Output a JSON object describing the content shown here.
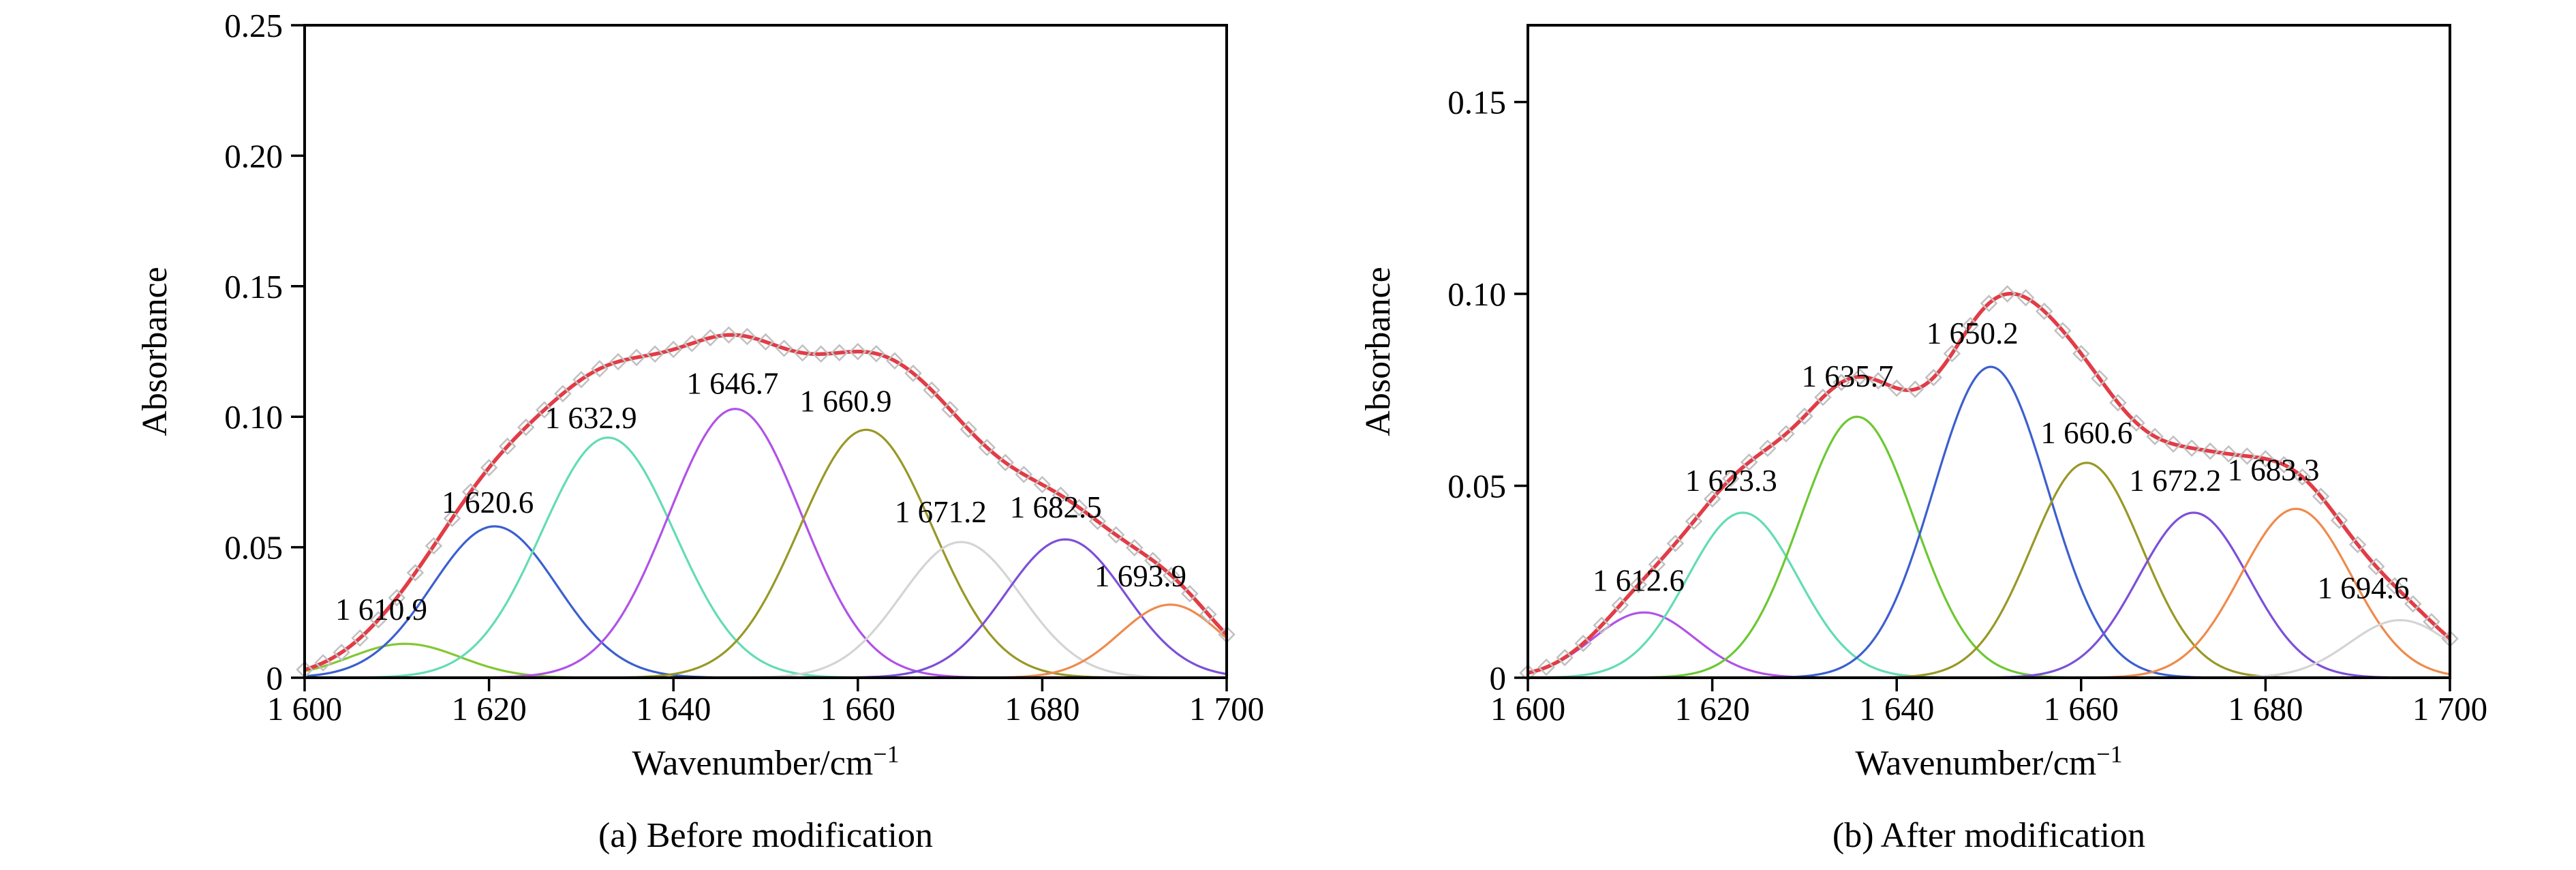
{
  "figure": {
    "background": "#ffffff"
  },
  "chart_data": [
    {
      "type": "line",
      "panel": "a",
      "caption": "(a) Before modification",
      "xlabel_base": "Wavenumber/cm",
      "xlabel_sup": "−1",
      "ylabel": "Absorbance",
      "xlim": [
        1600,
        1700
      ],
      "ylim": [
        0,
        0.25
      ],
      "grid": false,
      "legend": "none",
      "envelope_color": "#e23c46",
      "marker_color": "#c0c0c0",
      "marker_step": 2,
      "x_ticks": [
        {
          "v": 1600,
          "label": "1 600"
        },
        {
          "v": 1620,
          "label": "1 620"
        },
        {
          "v": 1640,
          "label": "1 640"
        },
        {
          "v": 1660,
          "label": "1 660"
        },
        {
          "v": 1680,
          "label": "1 680"
        },
        {
          "v": 1700,
          "label": "1 700"
        }
      ],
      "y_ticks": [
        {
          "v": 0,
          "label": "0"
        },
        {
          "v": 0.05,
          "label": "0.05"
        },
        {
          "v": 0.1,
          "label": "0.10"
        },
        {
          "v": 0.15,
          "label": "0.15"
        },
        {
          "v": 0.2,
          "label": "0.20"
        },
        {
          "v": 0.25,
          "label": "0.25"
        }
      ],
      "peaks": [
        {
          "label": "1 610.9",
          "center": 1610.9,
          "height": 0.013,
          "sigma": 6.0,
          "color": "#82c832",
          "dx": -35,
          "dy": -35
        },
        {
          "label": "1 620.6",
          "center": 1620.6,
          "height": 0.058,
          "sigma": 6.8,
          "color": "#3c5fcf",
          "dx": -10,
          "dy": -20
        },
        {
          "label": "1 632.9",
          "center": 1632.9,
          "height": 0.092,
          "sigma": 7.2,
          "color": "#63dcb4",
          "dx": -25,
          "dy": -14
        },
        {
          "label": "1 646.7",
          "center": 1646.7,
          "height": 0.103,
          "sigma": 7.2,
          "color": "#b052e8",
          "dx": -4,
          "dy": -22
        },
        {
          "label": "1 660.9",
          "center": 1660.9,
          "height": 0.095,
          "sigma": 7.2,
          "color": "#989826",
          "dx": -30,
          "dy": -27
        },
        {
          "label": "1 671.2",
          "center": 1671.2,
          "height": 0.052,
          "sigma": 6.5,
          "color": "#d4d4d4",
          "dx": -30,
          "dy": -29
        },
        {
          "label": "1 682.5",
          "center": 1682.5,
          "height": 0.053,
          "sigma": 6.5,
          "color": "#7d4fd8",
          "dx": -14,
          "dy": -32
        },
        {
          "label": "1 693.9",
          "center": 1693.9,
          "height": 0.028,
          "sigma": 5.5,
          "color": "#ef8a4c",
          "dx": -44,
          "dy": -27
        }
      ]
    },
    {
      "type": "line",
      "panel": "b",
      "caption": "(b) After modification",
      "xlabel_base": "Wavenumber/cm",
      "xlabel_sup": "−1",
      "ylabel": "Absorbance",
      "xlim": [
        1600,
        1700
      ],
      "ylim": [
        0,
        0.17
      ],
      "grid": false,
      "legend": "none",
      "envelope_color": "#e23c46",
      "marker_color": "#c0c0c0",
      "marker_step": 2,
      "x_ticks": [
        {
          "v": 1600,
          "label": "1 600"
        },
        {
          "v": 1620,
          "label": "1 620"
        },
        {
          "v": 1640,
          "label": "1 640"
        },
        {
          "v": 1660,
          "label": "1 660"
        },
        {
          "v": 1680,
          "label": "1 680"
        },
        {
          "v": 1700,
          "label": "1 700"
        }
      ],
      "y_ticks": [
        {
          "v": 0,
          "label": "0"
        },
        {
          "v": 0.05,
          "label": "0.05"
        },
        {
          "v": 0.1,
          "label": "0.10"
        },
        {
          "v": 0.15,
          "label": "0.15"
        }
      ],
      "peaks": [
        {
          "label": "1 612.6",
          "center": 1612.6,
          "height": 0.017,
          "sigma": 5.5,
          "color": "#b052e8",
          "dx": -8,
          "dy": -32
        },
        {
          "label": "1 623.3",
          "center": 1623.3,
          "height": 0.043,
          "sigma": 6.0,
          "color": "#63dcb4",
          "dx": -17,
          "dy": -32
        },
        {
          "label": "1 635.7",
          "center": 1635.7,
          "height": 0.068,
          "sigma": 6.2,
          "color": "#6cc832",
          "dx": -14,
          "dy": -44
        },
        {
          "label": "1 650.2",
          "center": 1650.2,
          "height": 0.081,
          "sigma": 6.2,
          "color": "#3c5fcf",
          "dx": -27,
          "dy": -34
        },
        {
          "label": "1 660.6",
          "center": 1660.6,
          "height": 0.056,
          "sigma": 6.0,
          "color": "#989826",
          "dx": 0,
          "dy": -29
        },
        {
          "label": "1 672.2",
          "center": 1672.2,
          "height": 0.043,
          "sigma": 6.0,
          "color": "#7d4fd8",
          "dx": -27,
          "dy": -32
        },
        {
          "label": "1 683.3",
          "center": 1683.3,
          "height": 0.044,
          "sigma": 6.0,
          "color": "#ef8a4c",
          "dx": -33,
          "dy": -42
        },
        {
          "label": "1 694.6",
          "center": 1694.6,
          "height": 0.015,
          "sigma": 5.5,
          "color": "#d4d4d4",
          "dx": -54,
          "dy": -32
        }
      ]
    }
  ]
}
